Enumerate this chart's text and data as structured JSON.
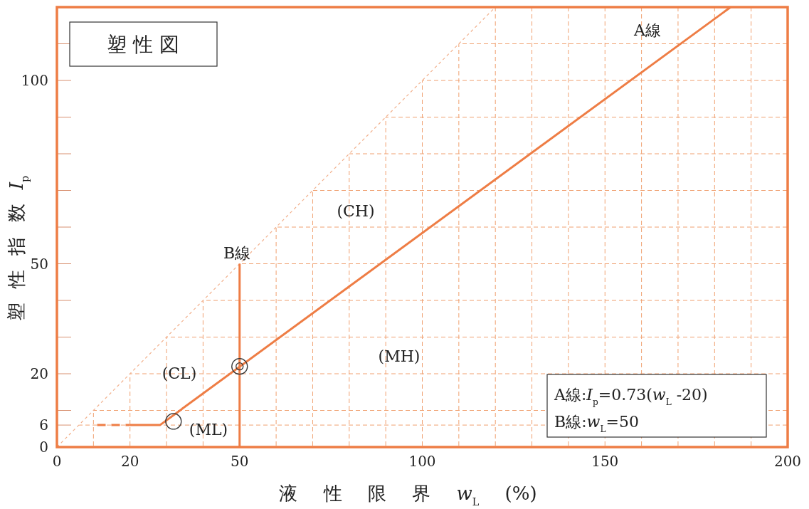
{
  "chart_data": {
    "type": "line",
    "title": "塑 性 図",
    "xlabel": "液 性 限 界 *w*$_{L}$ (%)",
    "ylabel": "塑 性 指 数 *I*$_{p}$",
    "xlim": [
      0,
      200
    ],
    "ylim": [
      0,
      120
    ],
    "xticks": [
      0,
      {
        "value": 10,
        "label": null
      },
      20,
      {
        "value": 30,
        "label": null
      },
      {
        "value": 40,
        "label": null
      },
      50,
      {
        "value": 60,
        "label": null
      },
      {
        "value": 70,
        "label": null
      },
      {
        "value": 80,
        "label": null
      },
      {
        "value": 90,
        "label": null
      },
      100,
      {
        "value": 110,
        "label": null
      },
      {
        "value": 120,
        "label": null
      },
      {
        "value": 130,
        "label": null
      },
      {
        "value": 140,
        "label": null
      },
      150,
      {
        "value": 160,
        "label": null
      },
      {
        "value": 170,
        "label": null
      },
      {
        "value": 180,
        "label": null
      },
      {
        "value": 190,
        "label": null
      },
      200
    ],
    "yticks": [
      0,
      6,
      {
        "value": 10,
        "label": null
      },
      20,
      {
        "value": 30,
        "label": null
      },
      {
        "value": 40,
        "label": null
      },
      50,
      {
        "value": 60,
        "label": null
      },
      {
        "value": 70,
        "label": null
      },
      {
        "value": 80,
        "label": null
      },
      {
        "value": 90,
        "label": null
      },
      100,
      {
        "value": 110,
        "label": null
      }
    ],
    "grid": true,
    "series": [
      {
        "type": "line",
        "color": "#f2b08c",
        "line_style": "dotted",
        "x": [
          0,
          120
        ],
        "values": [
          0,
          120
        ]
      },
      {
        "type": "line",
        "color": "#ee7d45",
        "line_style": "dashed",
        "x": [
          11,
          20
        ],
        "values": [
          6,
          6
        ]
      },
      {
        "type": "line",
        "color": "#ee7d45",
        "line_style": "solid",
        "x": [
          20,
          28.2,
          184.4
        ],
        "values": [
          6,
          6,
          120
        ]
      },
      {
        "type": "line",
        "color": "#ee7d45",
        "line_style": "solid",
        "x": [
          50,
          50
        ],
        "values": [
          0,
          50
        ]
      },
      {
        "type": "scatter",
        "color": "#333333",
        "marker": "circle",
        "x": [
          31.9,
          50
        ],
        "values": [
          7,
          22
        ]
      },
      {
        "type": "scatter",
        "color": "#333333",
        "marker": "circle",
        "x": [
          50
        ],
        "values": [
          22
        ]
      }
    ],
    "annotations": [
      "(CH)",
      "(MH)",
      "(CL)",
      "(ML)",
      "A線",
      "B線",
      "A線:*I*$_{p}$=0.73(*w*$_{L}$ -20)",
      "B線:*w*$_{L}$=50"
    ]
  }
}
